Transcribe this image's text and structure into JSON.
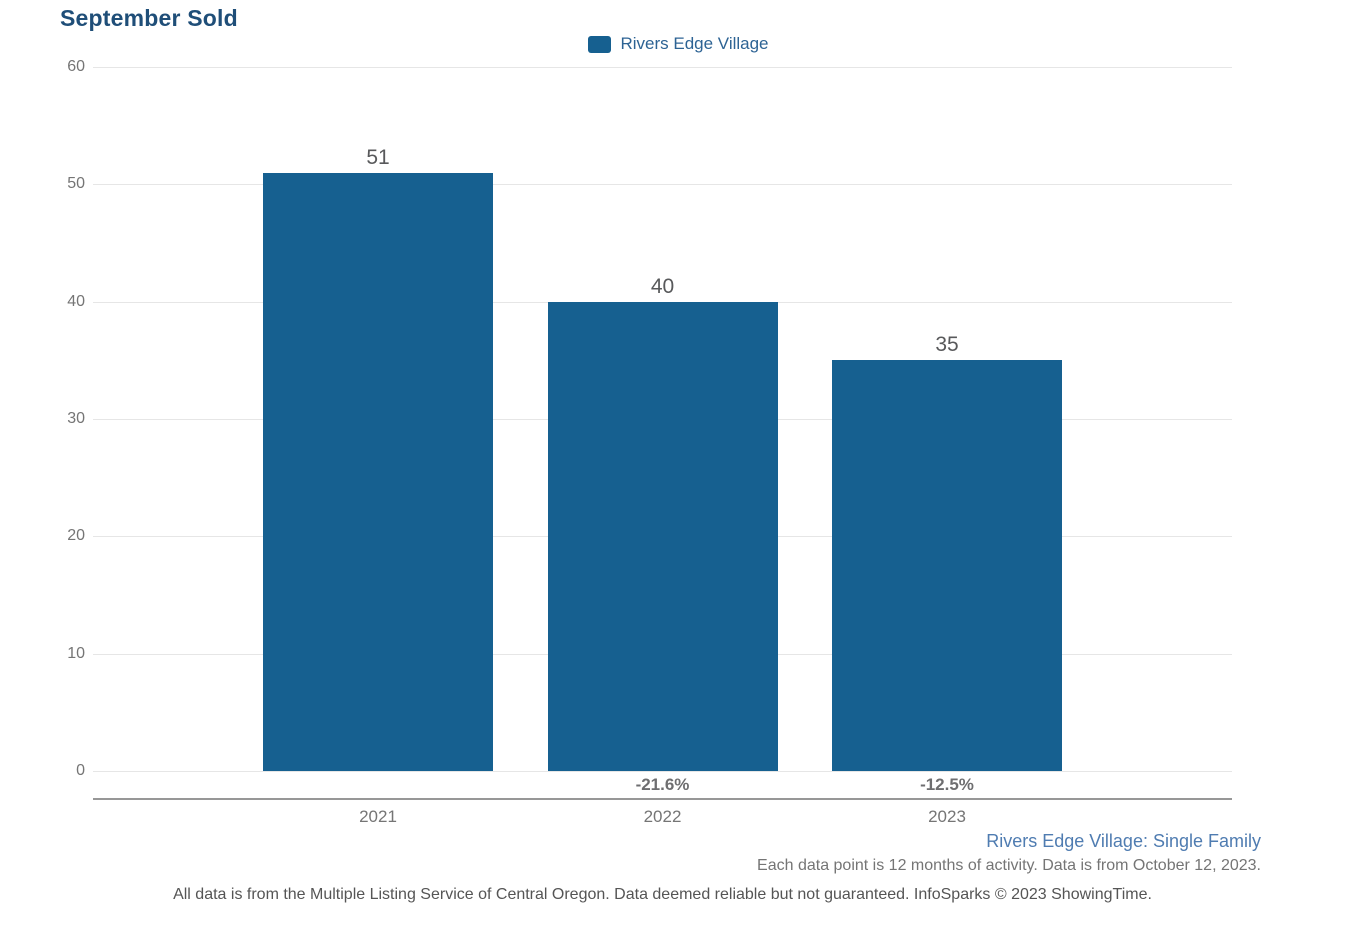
{
  "header": {
    "title": "September Sold"
  },
  "legend": {
    "label": "Rivers Edge Village"
  },
  "chart_data": {
    "type": "bar",
    "title": "September Sold",
    "categories": [
      "2021",
      "2022",
      "2023"
    ],
    "series": [
      {
        "name": "Rivers Edge Village",
        "values": [
          51,
          40,
          35
        ]
      }
    ],
    "bar_value_labels": [
      "51",
      "40",
      "35"
    ],
    "pct_change_labels": [
      "",
      "-21.6%",
      "-12.5%"
    ],
    "y_ticks": [
      0,
      10,
      20,
      30,
      40,
      50,
      60
    ],
    "ylim": [
      0,
      60
    ],
    "xlabel": "",
    "ylabel": "",
    "grid": true,
    "legend_position": "top-center"
  },
  "footer": {
    "series_note": "Rivers Edge Village: Single Family",
    "activity_note": "Each data point is 12 months of activity. Data is from October 12, 2023.",
    "disclaimer": "All data is from the Multiple Listing Service of Central Oregon. Data deemed reliable but not guaranteed. InfoSparks © 2023 ShowingTime."
  },
  "colors": {
    "bar": "#166090",
    "title": "#1f4e78",
    "legend_text": "#2d6394",
    "series_note_text": "#4f7cb1",
    "axis_text": "#757575",
    "value_label_text": "#58595b",
    "pct_label_text": "#6e6e70",
    "gridline": "#e6e6e6",
    "axis_line": "#979797",
    "disclaimer_text": "#555555"
  }
}
